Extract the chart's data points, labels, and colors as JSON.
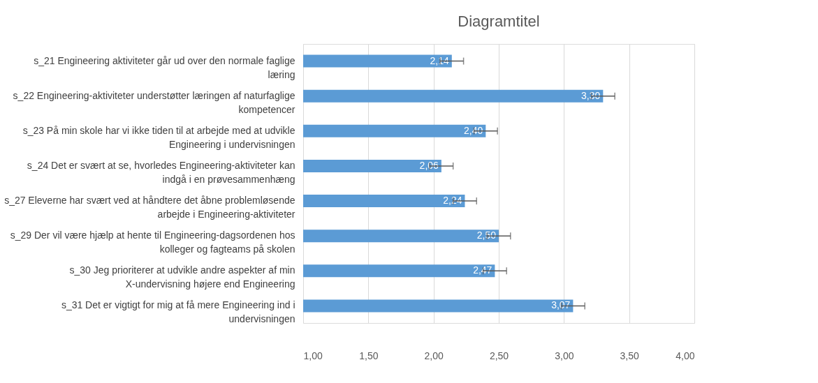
{
  "chart_data": {
    "type": "bar",
    "orientation": "horizontal",
    "title": "Diagramtitel",
    "categories": [
      "s_21 Engineering aktiviteter går ud over den normale faglige læring",
      "s_22 Engineering-aktiviteter understøtter læringen af naturfaglige kompetencer",
      "s_23 På min skole har vi ikke tiden til at arbejde med at udvikle Engineering i undervisningen",
      "s_24 Det er svært at se, hvorledes Engineering-aktiviteter kan indgå i en prøvesammenhæng",
      "s_27 Eleverne har svært ved at håndtere det åbne problemløsende arbejde i Engineering-aktiviteter",
      "s_29 Der vil være hjælp at hente til Engineering-dagsordenen hos kolleger og fagteams på skolen",
      "s_30 Jeg prioriterer at udvikle andre aspekter af min X-undervisning højere end Engineering",
      "s_31 Det er vigtigt for mig at få mere Engineering ind i undervisningen"
    ],
    "values": [
      2.14,
      3.3,
      2.4,
      2.06,
      2.24,
      2.5,
      2.47,
      3.07
    ],
    "value_labels": [
      "2,14",
      "3,30",
      "2,40",
      "2,06",
      "2,24",
      "2,50",
      "2,47",
      "3,07"
    ],
    "errors": [
      0.09,
      0.09,
      0.09,
      0.09,
      0.09,
      0.09,
      0.09,
      0.09
    ],
    "color": "#5b9bd5",
    "xlim": [
      1,
      4
    ],
    "xticks": [
      {
        "value": 1,
        "label": "1,00"
      },
      {
        "value": 1.5,
        "label": "1,50"
      },
      {
        "value": 2,
        "label": "2,00"
      },
      {
        "value": 2.5,
        "label": "2,50"
      },
      {
        "value": 3,
        "label": "3,00"
      },
      {
        "value": 3.5,
        "label": "3,50"
      },
      {
        "value": 4,
        "label": "4,00"
      }
    ],
    "grid": "x"
  }
}
